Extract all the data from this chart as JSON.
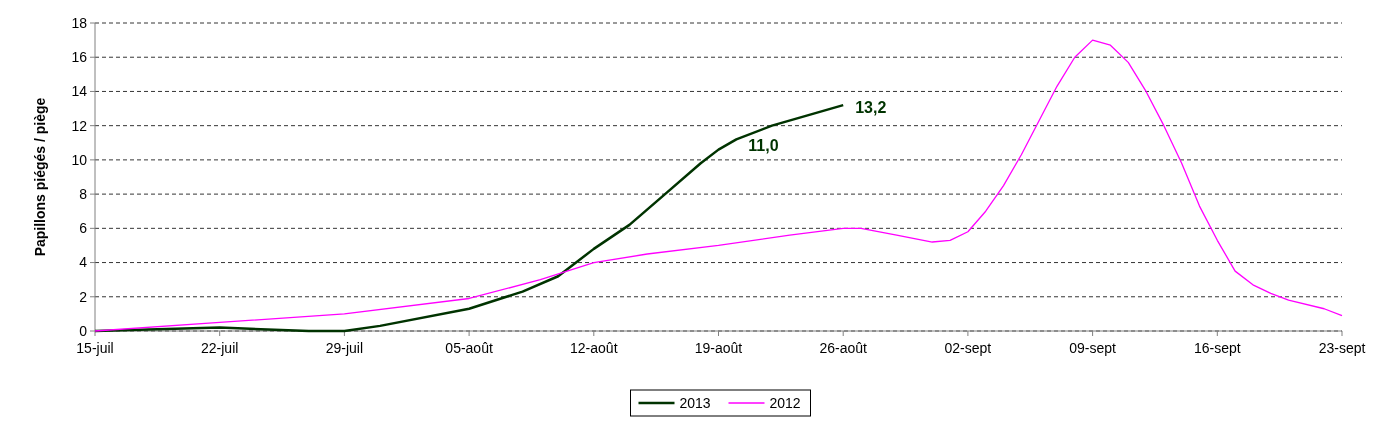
{
  "chart_data": {
    "type": "line",
    "ylabel": "Papillons piégés / piège",
    "xlim": [
      "--07-15",
      "--09-23"
    ],
    "xticks": [
      {
        "value": "--07-15",
        "label": "15-juil"
      },
      {
        "value": "--07-22",
        "label": "22-juil"
      },
      {
        "value": "--07-29",
        "label": "29-juil"
      },
      {
        "value": "--08-05",
        "label": "05-août"
      },
      {
        "value": "--08-12",
        "label": "12-août"
      },
      {
        "value": "--08-19",
        "label": "19-août"
      },
      {
        "value": "--08-26",
        "label": "26-août"
      },
      {
        "value": "--09-02",
        "label": "02-sept"
      },
      {
        "value": "--09-09",
        "label": "09-sept"
      },
      {
        "value": "--09-16",
        "label": "16-sept"
      },
      {
        "value": "--09-23",
        "label": "23-sept"
      }
    ],
    "ylim": [
      0,
      18
    ],
    "yticks": [
      0,
      2,
      4,
      6,
      8,
      10,
      12,
      14,
      16,
      18
    ],
    "grid": "y",
    "legend": "bottom",
    "marker": "none",
    "series": [
      {
        "name": "2013",
        "color": "#003300",
        "x": [
          "--07-15",
          "--07-22",
          "--07-27",
          "--07-29",
          "--07-31",
          "--08-05",
          "--08-08",
          "--08-10",
          "--08-12",
          "--08-14",
          "--08-16",
          "--08-18",
          "--08-19",
          "--08-20",
          "--08-22",
          "--08-24",
          "--08-26"
        ],
        "values": [
          0,
          0.2,
          0,
          0,
          0.3,
          1.3,
          2.3,
          3.2,
          4.8,
          6.2,
          8,
          9.8,
          10.6,
          11.2,
          12,
          12.6,
          13.2
        ]
      },
      {
        "name": "2012",
        "color": "#ff00ff",
        "x": [
          "--07-15",
          "--07-22",
          "--07-29",
          "--08-05",
          "--08-09",
          "--08-12",
          "--08-15",
          "--08-19",
          "--08-23",
          "--08-26",
          "--08-27",
          "--08-29",
          "--08-31",
          "--09-01",
          "--09-02",
          "--09-03",
          "--09-04",
          "--09-05",
          "--09-06",
          "--09-07",
          "--09-08",
          "--09-09",
          "--09-10",
          "--09-11",
          "--09-12",
          "--09-13",
          "--09-14",
          "--09-15",
          "--09-16",
          "--09-17",
          "--09-18",
          "--09-19",
          "--09-20",
          "--09-22",
          "--09-23"
        ],
        "values": [
          0,
          0.5,
          1.0,
          1.9,
          3.0,
          4.0,
          4.5,
          5.0,
          5.6,
          6.0,
          6.0,
          5.6,
          5.2,
          5.3,
          5.8,
          7.0,
          8.5,
          10.3,
          12.3,
          14.3,
          16,
          17,
          16.7,
          15.7,
          14,
          12,
          9.8,
          7.3,
          5.3,
          3.5,
          2.7,
          2.2,
          1.8,
          1.3,
          0.9
        ]
      }
    ],
    "annotations": [
      {
        "text": "11,0",
        "x": "--08-20",
        "y": 11.0
      },
      {
        "text": "13,2",
        "x": "--08-26",
        "y": 13.2
      }
    ]
  }
}
